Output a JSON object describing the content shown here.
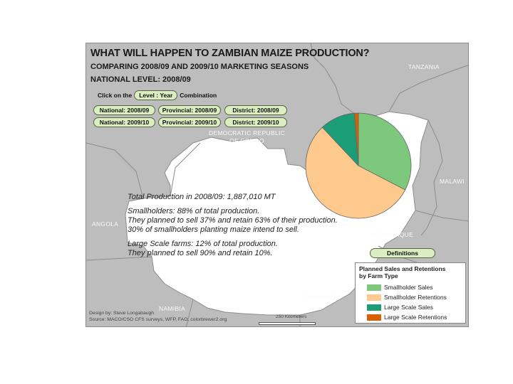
{
  "titles": {
    "main": "WHAT WILL HAPPEN TO  ZAMBIAN MAIZE PRODUCTION?",
    "sub": "COMPARING 2008/09 AND 2009/10 MARKETING SEASONS",
    "level": "NATIONAL LEVEL: 2008/09"
  },
  "selector": {
    "prefix": "Click on the",
    "pill": "Level : Year",
    "suffix": "Combination",
    "buttons": [
      "National: 2008/09",
      "Provincial: 2008/09",
      "District: 2008/09",
      "National: 2009/10",
      "Provincial: 2009/10",
      "District: 2009/10"
    ]
  },
  "countries": {
    "tanzania": "TANZANIA",
    "drc_line1": "DEMOCRATIC REPUBLIC",
    "drc_line2": "OF CONGO",
    "malawi": "MALAWI",
    "angola": "ANGOLA",
    "mozambique": "MOZAMBIQUE",
    "zimbabwe": "ZIMBABWE",
    "namibia": "NAMIBIA"
  },
  "info": {
    "total": "Total Production in 2008/09:  1,887,010 MT",
    "small1": "Smallholders: 88% of total production.",
    "small2": "They planned to sell 37%  and retain 63% of their production.",
    "small3": "30% of smallholders planting maize intend to sell.",
    "large1": "Large Scale farms: 12% of total production.",
    "large2": "They planned to sell 90% and retain 10%."
  },
  "definitions_button": "Definitions",
  "legend": {
    "title_line1": "Planned Sales and Retentions",
    "title_line2": "by Farm Type",
    "items": [
      {
        "label": "Smallholder Sales",
        "color": "#7ec87e"
      },
      {
        "label": "Smallholder Retentions",
        "color": "#fdc98c"
      },
      {
        "label": "Large Scale Sales",
        "color": "#1b9e77"
      },
      {
        "label": "Large Scale Retentions",
        "color": "#d95f02"
      }
    ]
  },
  "credits": {
    "design": "Design by: Steve Longabaugh",
    "source": "Source: MACO/CSO CFS surveys, WFP, FAO, colorbrewer2.org"
  },
  "scale_label": "250 Kilometers",
  "chart_data": {
    "type": "pie",
    "categories": [
      "Smallholder Sales",
      "Smallholder Retentions",
      "Large Scale Sales",
      "Large Scale Retentions"
    ],
    "values": [
      32.6,
      55.4,
      10.8,
      1.2
    ],
    "colors": [
      "#7ec87e",
      "#fdc98c",
      "#1b9e77",
      "#d95f02"
    ],
    "start": "top, clockwise"
  }
}
